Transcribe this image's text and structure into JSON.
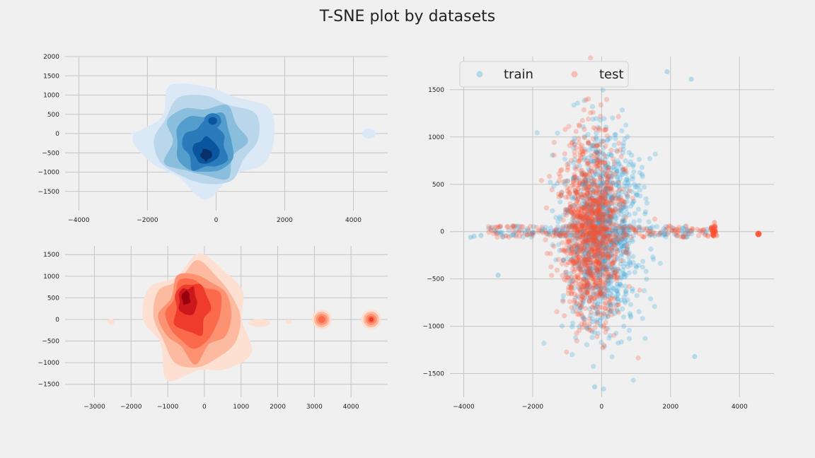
{
  "figure": {
    "title": "T-SNE plot by datasets",
    "background": "#f0f0f0"
  },
  "chart_data": [
    {
      "type": "kde",
      "title": "",
      "xlabel": "",
      "ylabel": "",
      "colormap": "Blues",
      "xlim": [
        -4400,
        5000
      ],
      "ylim": [
        -2000,
        2000
      ],
      "xticks": [
        -4000,
        -2000,
        0,
        2000,
        4000
      ],
      "yticks": [
        -1500,
        -1000,
        -500,
        0,
        500,
        1000,
        1500,
        2000
      ],
      "grid": true,
      "colors": [
        "#dbe9f6",
        "#bad6eb",
        "#89bedc",
        "#539ecd",
        "#2b7bba",
        "#0b559f",
        "#08306b"
      ],
      "density_peaks": [
        {
          "x": -300,
          "y": -550,
          "level": 7
        },
        {
          "x": -100,
          "y": 300,
          "level": 5
        },
        {
          "x": 4450,
          "y": 0,
          "level": 1
        }
      ]
    },
    {
      "type": "kde",
      "title": "",
      "xlabel": "",
      "ylabel": "",
      "colormap": "Reds",
      "xlim": [
        -3800,
        5000
      ],
      "ylim": [
        -1800,
        1700
      ],
      "xticks": [
        -3000,
        -2000,
        -1000,
        0,
        1000,
        2000,
        3000,
        4000
      ],
      "yticks": [
        -1500,
        -1000,
        -500,
        0,
        500,
        1000,
        1500
      ],
      "grid": true,
      "colors": [
        "#fee0d2",
        "#fcbba1",
        "#fc9272",
        "#fb6a4a",
        "#ef3b2c",
        "#cb181d",
        "#99000d"
      ],
      "density_peaks": [
        {
          "x": -500,
          "y": 500,
          "level": 7
        },
        {
          "x": 3200,
          "y": 0,
          "level": 3
        },
        {
          "x": 4550,
          "y": 0,
          "level": 4
        }
      ]
    },
    {
      "type": "scatter",
      "title": "",
      "xlabel": "",
      "ylabel": "",
      "xlim": [
        -4400,
        5000
      ],
      "ylim": [
        -1750,
        1850
      ],
      "xticks": [
        -4000,
        -2000,
        0,
        2000,
        4000
      ],
      "yticks": [
        -1500,
        -1000,
        -500,
        0,
        500,
        1000,
        1500
      ],
      "grid": true,
      "legend": {
        "position": "top-left",
        "columns": 2
      },
      "series": [
        {
          "name": "train",
          "color": "#30a2da",
          "opacity": 0.25,
          "center": [
            0,
            0
          ],
          "spread": [
            650,
            500
          ],
          "count": 1300,
          "outliers": [
            [
              1900,
              1690
            ],
            [
              2600,
              1610
            ],
            [
              -200,
              -1640
            ],
            [
              2700,
              -1320
            ],
            [
              -3000,
              -460
            ],
            [
              -3800,
              -60
            ],
            [
              -3700,
              -50
            ],
            [
              -3500,
              -40
            ]
          ]
        },
        {
          "name": "test",
          "color": "#fc4f30",
          "opacity": 0.25,
          "center": [
            -300,
            0
          ],
          "spread": [
            520,
            480
          ],
          "count": 1300,
          "outliers": [
            [
              4550,
              -25
            ],
            [
              3250,
              0
            ],
            [
              3250,
              -30
            ],
            [
              3250,
              30
            ],
            [
              2200,
              -10
            ],
            [
              -1600,
              -20
            ]
          ]
        }
      ]
    }
  ]
}
